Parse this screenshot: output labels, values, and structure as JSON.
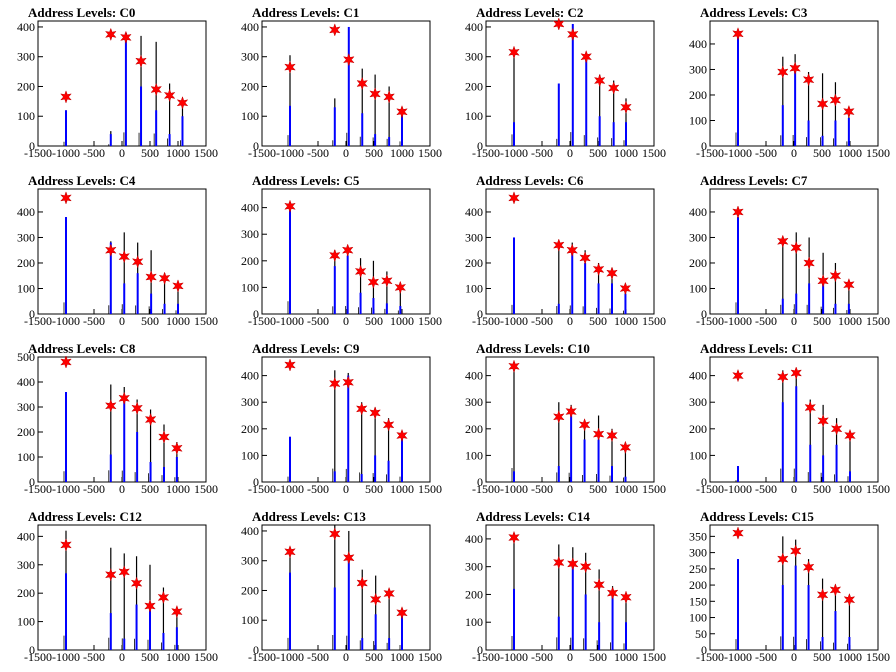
{
  "figure": {
    "title_prefix": "Address Levels: ",
    "colors": {
      "envelope": "#000000",
      "series": "#0000ff",
      "marker": "#ff0000",
      "axis": "#000000"
    }
  },
  "chart_data": [
    {
      "type": "bar",
      "title": "Address Levels: C0",
      "xlim": [
        -1500,
        1500
      ],
      "ylim": [
        0,
        420
      ],
      "xticks": [
        "-1500",
        "-1000",
        "-500",
        "0",
        "500",
        "1000",
        "1500"
      ],
      "yticks": [
        0,
        100,
        200,
        300,
        400
      ],
      "peaks_x": [
        -1000,
        -200,
        70,
        340,
        610,
        850,
        1080
      ],
      "envelope": [
        120,
        50,
        380,
        370,
        350,
        210,
        160
      ],
      "series": [
        120,
        40,
        380,
        200,
        120,
        40,
        100
      ],
      "markers": [
        165,
        375,
        365,
        285,
        190,
        170,
        145
      ]
    },
    {
      "type": "bar",
      "title": "Address Levels: C1",
      "xlim": [
        -1500,
        1500
      ],
      "ylim": [
        0,
        420
      ],
      "xticks": [
        "-1500",
        "-1000",
        "-500",
        "0",
        "500",
        "1000",
        "1500"
      ],
      "yticks": [
        0,
        100,
        200,
        300,
        400
      ],
      "peaks_x": [
        -1000,
        -200,
        50,
        290,
        520,
        770,
        1000
      ],
      "envelope": [
        305,
        160,
        370,
        260,
        240,
        200,
        130
      ],
      "series": [
        135,
        130,
        400,
        110,
        40,
        30,
        120
      ],
      "markers": [
        265,
        390,
        290,
        210,
        175,
        165,
        115
      ]
    },
    {
      "type": "bar",
      "title": "Address Levels: C2",
      "xlim": [
        -1500,
        1500
      ],
      "ylim": [
        0,
        420
      ],
      "xticks": [
        "-1500",
        "-1000",
        "-500",
        "0",
        "500",
        "1000",
        "1500"
      ],
      "yticks": [
        0,
        100,
        200,
        300,
        400
      ],
      "peaks_x": [
        -1000,
        -200,
        50,
        290,
        530,
        780,
        1000
      ],
      "envelope": [
        325,
        200,
        390,
        305,
        240,
        220,
        160
      ],
      "series": [
        80,
        210,
        410,
        290,
        100,
        80,
        80
      ],
      "markers": [
        315,
        410,
        375,
        300,
        220,
        195,
        130
      ]
    },
    {
      "type": "bar",
      "title": "Address Levels: C3",
      "xlim": [
        -1500,
        1500
      ],
      "ylim": [
        0,
        490
      ],
      "xticks": [
        "-1500",
        "-1000",
        "-500",
        "0",
        "500",
        "1000",
        "1500"
      ],
      "yticks": [
        0,
        100,
        200,
        300,
        400
      ],
      "peaks_x": [
        -1000,
        -200,
        20,
        260,
        510,
        740,
        980
      ],
      "envelope": [
        440,
        350,
        360,
        290,
        285,
        250,
        150
      ],
      "series": [
        440,
        160,
        300,
        100,
        40,
        100,
        110
      ],
      "markers": [
        440,
        290,
        305,
        260,
        165,
        180,
        135
      ]
    },
    {
      "type": "bar",
      "title": "Address Levels: C4",
      "xlim": [
        -1500,
        1500
      ],
      "ylim": [
        0,
        490
      ],
      "xticks": [
        "-1500",
        "-1000",
        "-500",
        "0",
        "500",
        "1000",
        "1500"
      ],
      "yticks": [
        0,
        100,
        200,
        300,
        400
      ],
      "peaks_x": [
        -1000,
        -200,
        40,
        280,
        520,
        760,
        1000
      ],
      "envelope": [
        380,
        285,
        320,
        280,
        250,
        160,
        120
      ],
      "series": [
        380,
        280,
        120,
        160,
        80,
        40,
        40
      ],
      "markers": [
        455,
        250,
        225,
        205,
        145,
        140,
        110
      ]
    },
    {
      "type": "bar",
      "title": "Address Levels: C5",
      "xlim": [
        -1500,
        1500
      ],
      "ylim": [
        0,
        470
      ],
      "xticks": [
        "-1500",
        "-1000",
        "-500",
        "0",
        "500",
        "1000",
        "1500"
      ],
      "yticks": [
        0,
        100,
        200,
        300,
        400
      ],
      "peaks_x": [
        -1000,
        -200,
        30,
        260,
        490,
        730,
        970
      ],
      "envelope": [
        400,
        240,
        250,
        210,
        200,
        160,
        110
      ],
      "series": [
        400,
        180,
        220,
        80,
        60,
        40,
        30
      ],
      "markers": [
        405,
        220,
        240,
        160,
        120,
        125,
        100
      ]
    },
    {
      "type": "bar",
      "title": "Address Levels: C6",
      "xlim": [
        -1500,
        1500
      ],
      "ylim": [
        0,
        490
      ],
      "xticks": [
        "-1500",
        "-1000",
        "-500",
        "0",
        "500",
        "1000",
        "1500"
      ],
      "yticks": [
        0,
        100,
        200,
        300,
        400
      ],
      "peaks_x": [
        -1000,
        -200,
        40,
        270,
        510,
        750,
        990
      ],
      "envelope": [
        300,
        260,
        280,
        250,
        200,
        180,
        110
      ],
      "series": [
        300,
        40,
        240,
        200,
        120,
        120,
        80
      ],
      "markers": [
        455,
        270,
        250,
        220,
        175,
        160,
        100
      ]
    },
    {
      "type": "bar",
      "title": "Address Levels: C7",
      "xlim": [
        -1500,
        1500
      ],
      "ylim": [
        0,
        490
      ],
      "xticks": [
        "-1500",
        "-1000",
        "-500",
        "0",
        "500",
        "1000",
        "1500"
      ],
      "yticks": [
        0,
        100,
        200,
        300,
        400
      ],
      "peaks_x": [
        -1000,
        -200,
        40,
        270,
        520,
        740,
        980
      ],
      "envelope": [
        380,
        300,
        320,
        300,
        240,
        200,
        130
      ],
      "series": [
        380,
        60,
        80,
        120,
        120,
        40,
        40
      ],
      "markers": [
        400,
        285,
        260,
        200,
        130,
        150,
        115
      ]
    },
    {
      "type": "bar",
      "title": "Address Levels: C8",
      "xlim": [
        -1500,
        1500
      ],
      "ylim": [
        0,
        500
      ],
      "xticks": [
        "-1500",
        "-1000",
        "-500",
        "0",
        "500",
        "1000",
        "1500"
      ],
      "yticks": [
        0,
        100,
        200,
        300,
        400,
        500
      ],
      "peaks_x": [
        -1000,
        -200,
        40,
        270,
        510,
        750,
        980
      ],
      "envelope": [
        360,
        390,
        380,
        330,
        290,
        230,
        160
      ],
      "series": [
        360,
        110,
        320,
        200,
        80,
        60,
        100
      ],
      "markers": [
        480,
        305,
        335,
        295,
        250,
        180,
        135
      ]
    },
    {
      "type": "bar",
      "title": "Address Levels: C9",
      "xlim": [
        -1500,
        1500
      ],
      "ylim": [
        0,
        470
      ],
      "xticks": [
        "-1500",
        "-1000",
        "-500",
        "0",
        "500",
        "1000",
        "1500"
      ],
      "yticks": [
        0,
        100,
        200,
        300,
        400
      ],
      "peaks_x": [
        -1000,
        -200,
        40,
        280,
        520,
        760,
        1000
      ],
      "envelope": [
        170,
        420,
        410,
        300,
        280,
        240,
        170
      ],
      "series": [
        170,
        40,
        400,
        30,
        100,
        80,
        170
      ],
      "markers": [
        440,
        370,
        375,
        275,
        260,
        215,
        175
      ]
    },
    {
      "type": "bar",
      "title": "Address Levels: C10",
      "xlim": [
        -1500,
        1500
      ],
      "ylim": [
        0,
        470
      ],
      "xticks": [
        "-1500",
        "-1000",
        "-500",
        "0",
        "500",
        "1000",
        "1500"
      ],
      "yticks": [
        0,
        100,
        200,
        300,
        400
      ],
      "peaks_x": [
        -1000,
        -200,
        20,
        260,
        510,
        750,
        990
      ],
      "envelope": [
        440,
        300,
        290,
        220,
        250,
        200,
        140
      ],
      "series": [
        40,
        60,
        250,
        160,
        160,
        60,
        20
      ],
      "markers": [
        435,
        245,
        265,
        215,
        180,
        175,
        130
      ]
    },
    {
      "type": "bar",
      "title": "Address Levels: C11",
      "xlim": [
        -1500,
        1500
      ],
      "ylim": [
        0,
        470
      ],
      "xticks": [
        "-1500",
        "-1000",
        "-500",
        "0",
        "500",
        "1000",
        "1500"
      ],
      "yticks": [
        0,
        100,
        200,
        300,
        400
      ],
      "peaks_x": [
        -1000,
        -200,
        40,
        290,
        520,
        760,
        1000
      ],
      "envelope": [
        60,
        420,
        420,
        310,
        290,
        240,
        180
      ],
      "series": [
        60,
        300,
        360,
        140,
        100,
        140,
        40
      ],
      "markers": [
        400,
        395,
        410,
        280,
        230,
        200,
        175
      ]
    },
    {
      "type": "bar",
      "title": "Address Levels: C12",
      "xlim": [
        -1500,
        1500
      ],
      "ylim": [
        0,
        440
      ],
      "xticks": [
        "-1500",
        "-1000",
        "-500",
        "0",
        "500",
        "1000",
        "1500"
      ],
      "yticks": [
        0,
        100,
        200,
        300,
        400
      ],
      "peaks_x": [
        -1000,
        -200,
        40,
        260,
        500,
        740,
        980
      ],
      "envelope": [
        420,
        360,
        340,
        330,
        300,
        220,
        150
      ],
      "series": [
        270,
        130,
        40,
        160,
        140,
        60,
        80
      ],
      "markers": [
        370,
        265,
        275,
        235,
        155,
        185,
        135
      ]
    },
    {
      "type": "bar",
      "title": "Address Levels: C13",
      "xlim": [
        -1500,
        1500
      ],
      "ylim": [
        0,
        420
      ],
      "xticks": [
        "-1500",
        "-1000",
        "-500",
        "0",
        "500",
        "1000",
        "1500"
      ],
      "yticks": [
        0,
        100,
        200,
        300,
        400
      ],
      "peaks_x": [
        -1000,
        -200,
        50,
        290,
        530,
        770,
        1000
      ],
      "envelope": [
        340,
        420,
        400,
        270,
        250,
        200,
        140
      ],
      "series": [
        260,
        210,
        300,
        40,
        120,
        40,
        120
      ],
      "markers": [
        330,
        390,
        310,
        225,
        170,
        190,
        125
      ]
    },
    {
      "type": "bar",
      "title": "Address Levels: C14",
      "xlim": [
        -1500,
        1500
      ],
      "ylim": [
        0,
        450
      ],
      "xticks": [
        "-1500",
        "-1000",
        "-500",
        "0",
        "500",
        "1000",
        "1500"
      ],
      "yticks": [
        0,
        100,
        200,
        300,
        400
      ],
      "peaks_x": [
        -1000,
        -200,
        50,
        280,
        520,
        760,
        1000
      ],
      "envelope": [
        420,
        380,
        370,
        350,
        290,
        230,
        200
      ],
      "series": [
        220,
        120,
        320,
        200,
        100,
        200,
        100
      ],
      "markers": [
        405,
        315,
        310,
        300,
        235,
        205,
        190
      ]
    },
    {
      "type": "bar",
      "title": "Address Levels: C15",
      "xlim": [
        -1500,
        1500
      ],
      "ylim": [
        0,
        385
      ],
      "xticks": [
        "-1500",
        "-1000",
        "-500",
        "0",
        "500",
        "1000",
        "1500"
      ],
      "yticks": [
        0,
        50,
        100,
        150,
        200,
        250,
        300,
        350
      ],
      "peaks_x": [
        -1000,
        -200,
        30,
        260,
        510,
        740,
        990
      ],
      "envelope": [
        280,
        350,
        340,
        280,
        220,
        190,
        160
      ],
      "series": [
        280,
        200,
        260,
        200,
        40,
        120,
        40
      ],
      "markers": [
        360,
        280,
        305,
        255,
        170,
        185,
        155
      ]
    }
  ]
}
